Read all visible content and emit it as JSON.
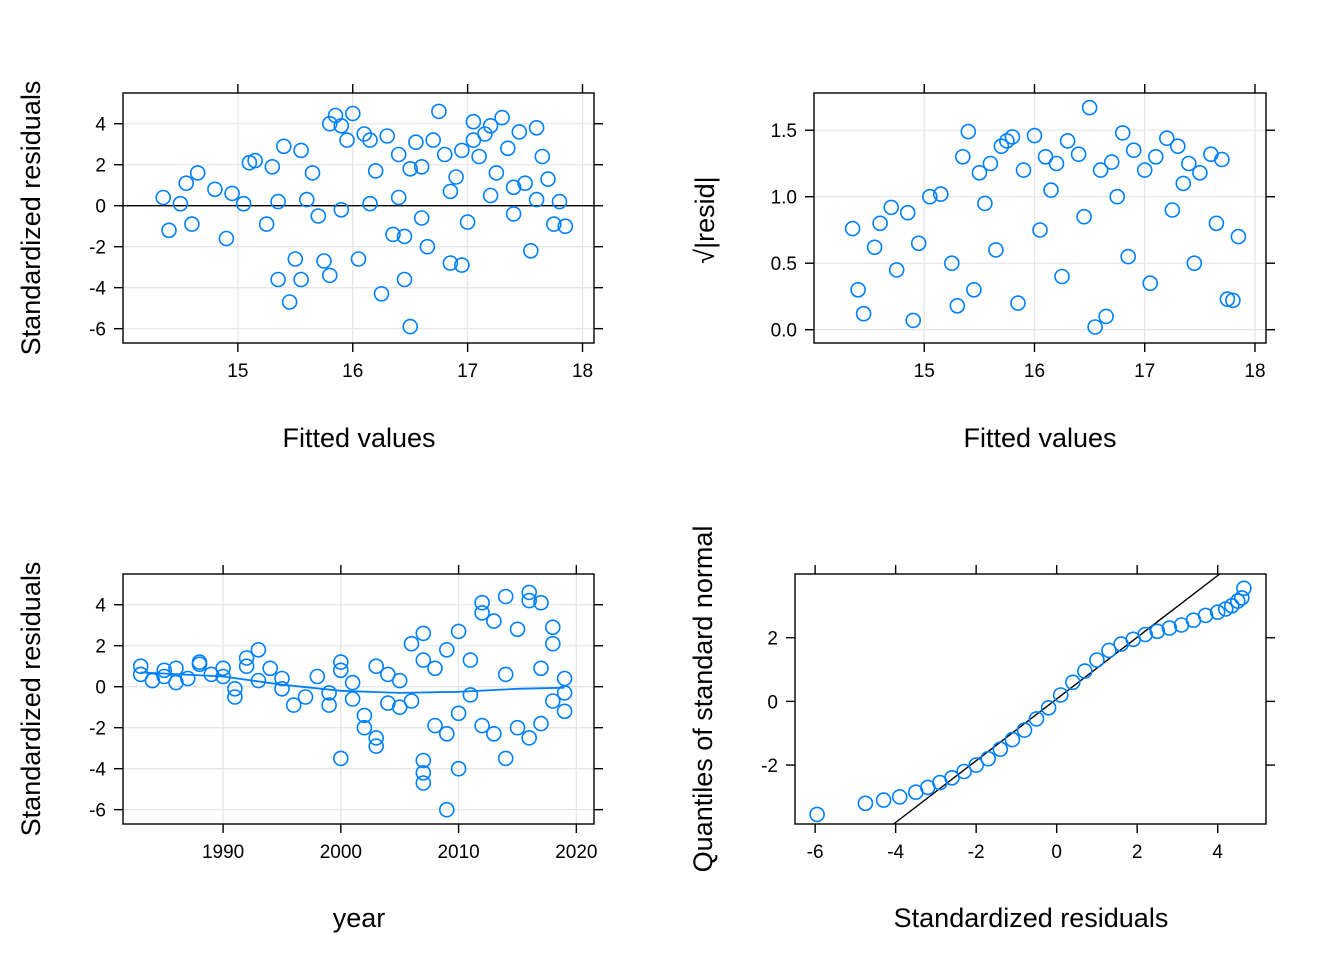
{
  "colors": {
    "points": "#0080ff",
    "grid": "#e6e6e6",
    "axis": "#000000"
  },
  "chart_data": [
    {
      "type": "scatter",
      "xlabel": "Fitted values",
      "ylabel": "Standardized residuals",
      "xlim": [
        14.0,
        18.1
      ],
      "ylim": [
        -6.7,
        5.5
      ],
      "xticks": [
        15,
        16,
        17,
        18
      ],
      "yticks": [
        -6,
        -4,
        -2,
        0,
        2,
        4
      ],
      "xgrid": [
        15,
        16,
        17,
        18
      ],
      "ygrid": [
        -6,
        -4,
        -2,
        0,
        2,
        4
      ],
      "grid": true,
      "hline": 0,
      "points": [
        [
          14.35,
          0.4
        ],
        [
          14.4,
          -1.2
        ],
        [
          14.5,
          0.1
        ],
        [
          14.55,
          1.1
        ],
        [
          14.6,
          -0.9
        ],
        [
          14.65,
          1.6
        ],
        [
          14.8,
          0.8
        ],
        [
          14.9,
          -1.6
        ],
        [
          14.95,
          0.6
        ],
        [
          15.05,
          0.1
        ],
        [
          15.1,
          2.1
        ],
        [
          15.15,
          2.2
        ],
        [
          15.3,
          1.9
        ],
        [
          15.35,
          -3.6
        ],
        [
          15.4,
          2.9
        ],
        [
          15.45,
          -4.7
        ],
        [
          15.5,
          -2.6
        ],
        [
          15.55,
          -3.6
        ],
        [
          15.55,
          2.7
        ],
        [
          15.65,
          1.6
        ],
        [
          15.75,
          -2.7
        ],
        [
          15.8,
          -3.4
        ],
        [
          15.8,
          4.0
        ],
        [
          15.85,
          4.4
        ],
        [
          15.9,
          3.9
        ],
        [
          15.95,
          3.2
        ],
        [
          16.0,
          4.5
        ],
        [
          16.05,
          -2.6
        ],
        [
          16.1,
          3.5
        ],
        [
          16.15,
          3.2
        ],
        [
          16.2,
          1.7
        ],
        [
          16.25,
          -4.3
        ],
        [
          16.3,
          3.4
        ],
        [
          16.35,
          -1.4
        ],
        [
          16.4,
          2.5
        ],
        [
          16.45,
          -3.6
        ],
        [
          16.5,
          1.8
        ],
        [
          16.5,
          -5.9
        ],
        [
          16.55,
          3.1
        ],
        [
          16.6,
          1.9
        ],
        [
          16.65,
          -2.0
        ],
        [
          16.7,
          3.2
        ],
        [
          16.75,
          4.6
        ],
        [
          16.8,
          2.5
        ],
        [
          16.85,
          -2.8
        ],
        [
          16.9,
          1.4
        ],
        [
          16.95,
          2.7
        ],
        [
          16.95,
          -2.9
        ],
        [
          17.05,
          3.2
        ],
        [
          17.1,
          2.4
        ],
        [
          17.15,
          3.5
        ],
        [
          17.2,
          3.9
        ],
        [
          17.25,
          1.6
        ],
        [
          17.3,
          4.3
        ],
        [
          17.35,
          2.8
        ],
        [
          17.4,
          0.9
        ],
        [
          17.45,
          3.6
        ],
        [
          17.5,
          1.1
        ],
        [
          17.55,
          -2.2
        ],
        [
          17.6,
          3.8
        ],
        [
          17.65,
          2.4
        ],
        [
          17.7,
          1.3
        ],
        [
          17.75,
          -0.9
        ],
        [
          17.8,
          0.2
        ],
        [
          17.85,
          -1.0
        ],
        [
          17.05,
          4.1
        ],
        [
          16.45,
          -1.5
        ],
        [
          15.25,
          -0.9
        ],
        [
          15.6,
          0.3
        ],
        [
          15.9,
          -0.2
        ],
        [
          16.15,
          0.1
        ],
        [
          16.4,
          0.4
        ],
        [
          16.6,
          -0.6
        ],
        [
          16.85,
          0.7
        ],
        [
          17.0,
          -0.8
        ],
        [
          17.2,
          0.5
        ],
        [
          17.4,
          -0.4
        ],
        [
          17.6,
          0.3
        ],
        [
          15.35,
          0.2
        ],
        [
          15.7,
          -0.5
        ]
      ]
    },
    {
      "type": "scatter",
      "xlabel": "Fitted values",
      "ylabel": "√|resid|",
      "xlim": [
        14.0,
        18.1
      ],
      "ylim": [
        -0.1,
        1.78
      ],
      "xticks": [
        15,
        16,
        17,
        18
      ],
      "yticks": [
        0.0,
        0.5,
        1.0,
        1.5
      ],
      "yticklabels": [
        "0.0",
        "0.5",
        "1.0",
        "1.5"
      ],
      "xgrid": [
        15,
        16,
        17,
        18
      ],
      "ygrid": [
        0.0,
        0.5,
        1.0,
        1.5
      ],
      "grid": true,
      "points": [
        [
          14.35,
          0.76
        ],
        [
          14.4,
          0.3
        ],
        [
          14.45,
          0.12
        ],
        [
          14.55,
          0.62
        ],
        [
          14.6,
          0.8
        ],
        [
          14.7,
          0.92
        ],
        [
          14.75,
          0.45
        ],
        [
          14.85,
          0.88
        ],
        [
          14.9,
          0.07
        ],
        [
          14.95,
          0.65
        ],
        [
          15.05,
          1.0
        ],
        [
          15.15,
          1.02
        ],
        [
          15.3,
          0.18
        ],
        [
          15.35,
          1.3
        ],
        [
          15.4,
          1.49
        ],
        [
          15.5,
          1.18
        ],
        [
          15.6,
          1.25
        ],
        [
          15.7,
          1.38
        ],
        [
          15.75,
          1.42
        ],
        [
          15.8,
          1.45
        ],
        [
          15.9,
          1.2
        ],
        [
          16.0,
          1.46
        ],
        [
          16.1,
          1.3
        ],
        [
          16.2,
          1.25
        ],
        [
          16.3,
          1.42
        ],
        [
          16.4,
          1.32
        ],
        [
          16.5,
          1.67
        ],
        [
          16.6,
          1.2
        ],
        [
          16.7,
          1.26
        ],
        [
          16.8,
          1.48
        ],
        [
          16.9,
          1.35
        ],
        [
          17.0,
          1.2
        ],
        [
          17.1,
          1.3
        ],
        [
          17.2,
          1.44
        ],
        [
          17.3,
          1.38
        ],
        [
          17.4,
          1.25
        ],
        [
          17.5,
          1.18
        ],
        [
          17.6,
          1.32
        ],
        [
          17.7,
          1.28
        ],
        [
          17.8,
          0.22
        ],
        [
          17.85,
          0.7
        ],
        [
          17.75,
          0.23
        ],
        [
          15.25,
          0.5
        ],
        [
          15.45,
          0.3
        ],
        [
          15.65,
          0.6
        ],
        [
          15.85,
          0.2
        ],
        [
          16.05,
          0.75
        ],
        [
          16.25,
          0.4
        ],
        [
          16.45,
          0.85
        ],
        [
          16.65,
          0.1
        ],
        [
          16.85,
          0.55
        ],
        [
          17.05,
          0.35
        ],
        [
          17.25,
          0.9
        ],
        [
          17.45,
          0.5
        ],
        [
          17.65,
          0.8
        ],
        [
          15.55,
          0.95
        ],
        [
          16.15,
          1.05
        ],
        [
          16.75,
          1.0
        ],
        [
          17.35,
          1.1
        ],
        [
          16.55,
          0.02
        ]
      ]
    },
    {
      "type": "scatter",
      "xlabel": "year",
      "ylabel": "Standardized residuals",
      "xlim": [
        1981.5,
        2021.5
      ],
      "ylim": [
        -6.7,
        5.5
      ],
      "xticks": [
        1990,
        2000,
        2010,
        2020
      ],
      "yticks": [
        -6,
        -4,
        -2,
        0,
        2,
        4
      ],
      "xgrid": [
        1990,
        2000,
        2010,
        2020
      ],
      "ygrid": [
        -6,
        -4,
        -2,
        0,
        2,
        4
      ],
      "grid": true,
      "smooth": [
        [
          1983,
          0.7
        ],
        [
          1990,
          0.5
        ],
        [
          1995,
          0.1
        ],
        [
          2000,
          -0.2
        ],
        [
          2005,
          -0.3
        ],
        [
          2010,
          -0.25
        ],
        [
          2015,
          -0.1
        ],
        [
          2019,
          -0.05
        ]
      ],
      "points": [
        [
          1983,
          1.0
        ],
        [
          1983,
          0.6
        ],
        [
          1984,
          0.3
        ],
        [
          1985,
          0.8
        ],
        [
          1985,
          0.5
        ],
        [
          1986,
          0.9
        ],
        [
          1986,
          0.2
        ],
        [
          1987,
          0.4
        ],
        [
          1988,
          1.1
        ],
        [
          1988,
          1.2
        ],
        [
          1989,
          0.6
        ],
        [
          1990,
          0.9
        ],
        [
          1990,
          0.5
        ],
        [
          1991,
          -0.5
        ],
        [
          1991,
          -0.1
        ],
        [
          1992,
          1.4
        ],
        [
          1992,
          1.0
        ],
        [
          1993,
          1.8
        ],
        [
          1993,
          0.3
        ],
        [
          1994,
          0.9
        ],
        [
          1995,
          0.4
        ],
        [
          1995,
          -0.1
        ],
        [
          1996,
          -0.9
        ],
        [
          1997,
          -0.5
        ],
        [
          1998,
          0.5
        ],
        [
          1999,
          -0.3
        ],
        [
          1999,
          -0.9
        ],
        [
          2000,
          -3.5
        ],
        [
          2000,
          1.2
        ],
        [
          2000,
          0.8
        ],
        [
          2001,
          -0.6
        ],
        [
          2001,
          0.2
        ],
        [
          2002,
          -1.4
        ],
        [
          2002,
          -2.0
        ],
        [
          2003,
          -2.9
        ],
        [
          2003,
          -2.5
        ],
        [
          2003,
          1.0
        ],
        [
          2004,
          -0.8
        ],
        [
          2004,
          0.6
        ],
        [
          2005,
          0.3
        ],
        [
          2005,
          -1.0
        ],
        [
          2006,
          2.1
        ],
        [
          2006,
          -0.7
        ],
        [
          2007,
          2.6
        ],
        [
          2007,
          -3.6
        ],
        [
          2007,
          -4.2
        ],
        [
          2007,
          -4.7
        ],
        [
          2007,
          1.3
        ],
        [
          2008,
          -1.9
        ],
        [
          2008,
          0.9
        ],
        [
          2009,
          -6.0
        ],
        [
          2009,
          -2.3
        ],
        [
          2009,
          1.8
        ],
        [
          2010,
          2.7
        ],
        [
          2010,
          -4.0
        ],
        [
          2010,
          -1.3
        ],
        [
          2011,
          1.3
        ],
        [
          2011,
          -0.4
        ],
        [
          2012,
          4.1
        ],
        [
          2012,
          3.6
        ],
        [
          2012,
          -1.9
        ],
        [
          2013,
          3.2
        ],
        [
          2013,
          -2.3
        ],
        [
          2014,
          4.4
        ],
        [
          2014,
          -3.5
        ],
        [
          2014,
          0.6
        ],
        [
          2015,
          2.8
        ],
        [
          2015,
          -2.0
        ],
        [
          2016,
          4.6
        ],
        [
          2016,
          4.2
        ],
        [
          2016,
          -2.5
        ],
        [
          2017,
          4.1
        ],
        [
          2017,
          -1.8
        ],
        [
          2017,
          0.9
        ],
        [
          2018,
          2.9
        ],
        [
          2018,
          -0.7
        ],
        [
          2018,
          2.1
        ],
        [
          2019,
          0.4
        ],
        [
          2019,
          -1.2
        ],
        [
          2019,
          -0.3
        ]
      ]
    },
    {
      "type": "scatter",
      "xlabel": "Standardized residuals",
      "ylabel": "Quantiles of standard normal",
      "xlim": [
        -6.5,
        5.2
      ],
      "ylim": [
        -3.85,
        4.0
      ],
      "xticks": [
        -6,
        -4,
        -2,
        0,
        2,
        4
      ],
      "yticks": [
        -2,
        0,
        2
      ],
      "grid": false,
      "refline": [
        [
          -4.05,
          -3.85
        ],
        [
          4.05,
          4.0
        ]
      ],
      "points": [
        [
          -5.95,
          -3.55
        ],
        [
          -4.75,
          -3.2
        ],
        [
          -4.3,
          -3.1
        ],
        [
          -3.9,
          -3.0
        ],
        [
          -3.5,
          -2.85
        ],
        [
          -3.2,
          -2.7
        ],
        [
          -2.9,
          -2.55
        ],
        [
          -2.6,
          -2.4
        ],
        [
          -2.3,
          -2.2
        ],
        [
          -2.0,
          -2.0
        ],
        [
          -1.7,
          -1.8
        ],
        [
          -1.4,
          -1.5
        ],
        [
          -1.1,
          -1.2
        ],
        [
          -0.8,
          -0.9
        ],
        [
          -0.5,
          -0.55
        ],
        [
          -0.2,
          -0.2
        ],
        [
          0.1,
          0.2
        ],
        [
          0.4,
          0.6
        ],
        [
          0.7,
          0.95
        ],
        [
          1.0,
          1.3
        ],
        [
          1.3,
          1.6
        ],
        [
          1.6,
          1.8
        ],
        [
          1.9,
          1.95
        ],
        [
          2.2,
          2.1
        ],
        [
          2.5,
          2.2
        ],
        [
          2.8,
          2.3
        ],
        [
          3.1,
          2.4
        ],
        [
          3.4,
          2.55
        ],
        [
          3.7,
          2.7
        ],
        [
          4.0,
          2.8
        ],
        [
          4.2,
          2.9
        ],
        [
          4.35,
          3.0
        ],
        [
          4.5,
          3.15
        ],
        [
          4.6,
          3.25
        ],
        [
          4.65,
          3.55
        ]
      ]
    }
  ]
}
